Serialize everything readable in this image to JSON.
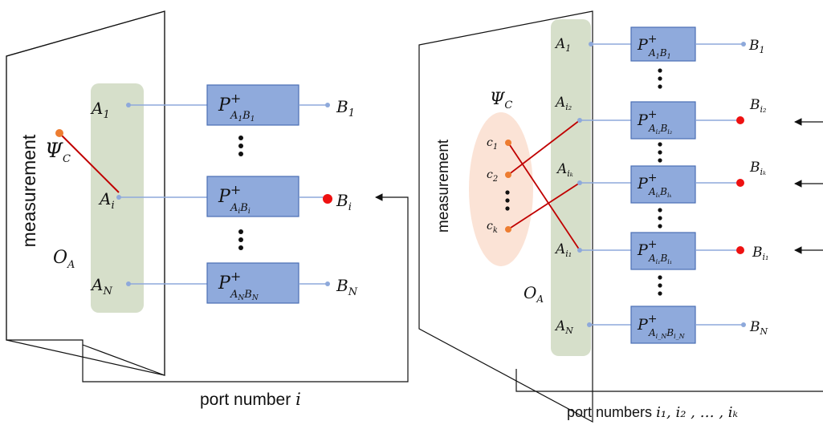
{
  "left": {
    "measurement": "measurement",
    "psi": "Ψ",
    "psi_sub": "C",
    "observable": "O",
    "observable_sub": "A",
    "ports": [
      {
        "a": "A",
        "a_sub": "1",
        "p_sub": "A₁B₁",
        "b": "B",
        "b_sub": "1"
      },
      {
        "a": "A",
        "a_sub": "i",
        "p_sub": "AᵢBᵢ",
        "b": "B",
        "b_sub": "i"
      },
      {
        "a": "A",
        "a_sub": "N",
        "p_sub": "A_NB_N",
        "b": "B",
        "b_sub": "N"
      }
    ],
    "p": "P",
    "p_sup": "+",
    "caption_prefix": "port number ",
    "caption_var": "i"
  },
  "right": {
    "measurement": "measurement",
    "psi": "Ψ",
    "psi_sub": "C",
    "observable": "O",
    "observable_sub": "A",
    "c_labels": [
      {
        "c": "c",
        "sub": "1"
      },
      {
        "c": "c",
        "sub": "2"
      },
      {
        "c": "c",
        "sub": "k"
      }
    ],
    "ports": [
      {
        "a": "A",
        "a_sub": "1",
        "b": "B",
        "b_sub": "1"
      },
      {
        "a": "A",
        "a_sub": "i₂",
        "b": "B",
        "b_sub": "i₂"
      },
      {
        "a": "A",
        "a_sub": "iₖ",
        "b": "B",
        "b_sub": "iₖ"
      },
      {
        "a": "A",
        "a_sub": "i₁",
        "b": "B",
        "b_sub": "i₁"
      },
      {
        "a": "A",
        "a_sub": "N",
        "b": "B",
        "b_sub": "N"
      }
    ],
    "caption_prefix": "port numbers ",
    "caption_vars": "i₁, i₂ , … , iₖ"
  },
  "colors": {
    "box_fill": "#8faadc",
    "box_stroke": "#4a6fb5",
    "green_panel": "#d6dfca",
    "pink_ellipse": "#fbe3d6",
    "red_line": "#c00000",
    "red_dot": "#ee1111",
    "orange_dot": "#ed7d31",
    "wire": "#8ea9db"
  }
}
